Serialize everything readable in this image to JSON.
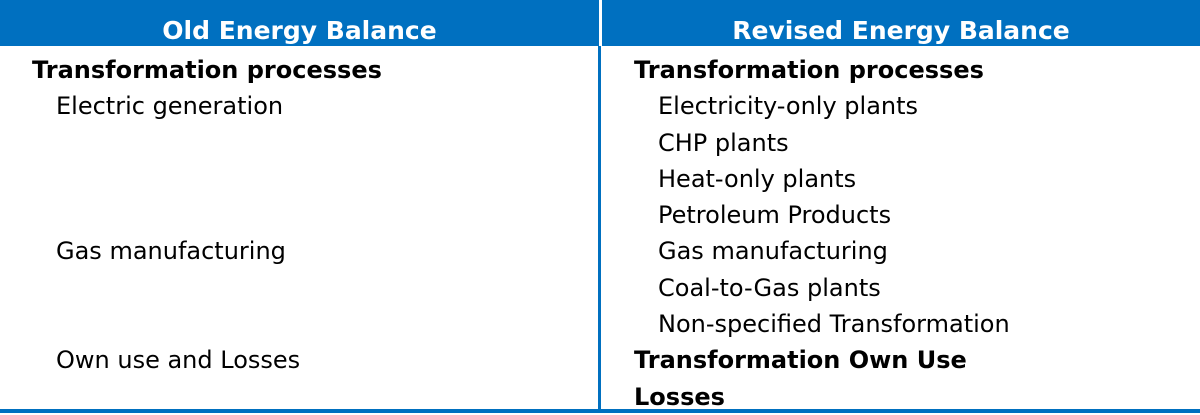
{
  "header": {
    "left": "Old Energy Balance",
    "right": "Revised Energy Balance"
  },
  "old_balance": [
    {
      "text": "Transformation processes",
      "bold": true
    },
    {
      "text": "Electric generation",
      "bold": false
    },
    {
      "text": "",
      "bold": false
    },
    {
      "text": "",
      "bold": false
    },
    {
      "text": "",
      "bold": false
    },
    {
      "text": "Gas manufacturing",
      "bold": false
    },
    {
      "text": "",
      "bold": false
    },
    {
      "text": "",
      "bold": false
    },
    {
      "text": "Own use and Losses",
      "bold": false
    }
  ],
  "revised_balance": [
    {
      "text": "Transformation processes",
      "bold": true
    },
    {
      "text": "Electricity-only plants",
      "bold": false
    },
    {
      "text": "CHP plants",
      "bold": false
    },
    {
      "text": "Heat-only plants",
      "bold": false
    },
    {
      "text": "Petroleum Products",
      "bold": false
    },
    {
      "text": "Gas manufacturing",
      "bold": false
    },
    {
      "text": "Coal-to-Gas plants",
      "bold": false
    },
    {
      "text": "Non-specified Transformation",
      "bold": false
    },
    {
      "text": "Transformation Own Use",
      "bold": true
    },
    {
      "text": "Losses",
      "bold": true
    }
  ],
  "colors": {
    "header_bg": "#0070c0",
    "header_text": "#ffffff",
    "body_text": "#000000"
  }
}
